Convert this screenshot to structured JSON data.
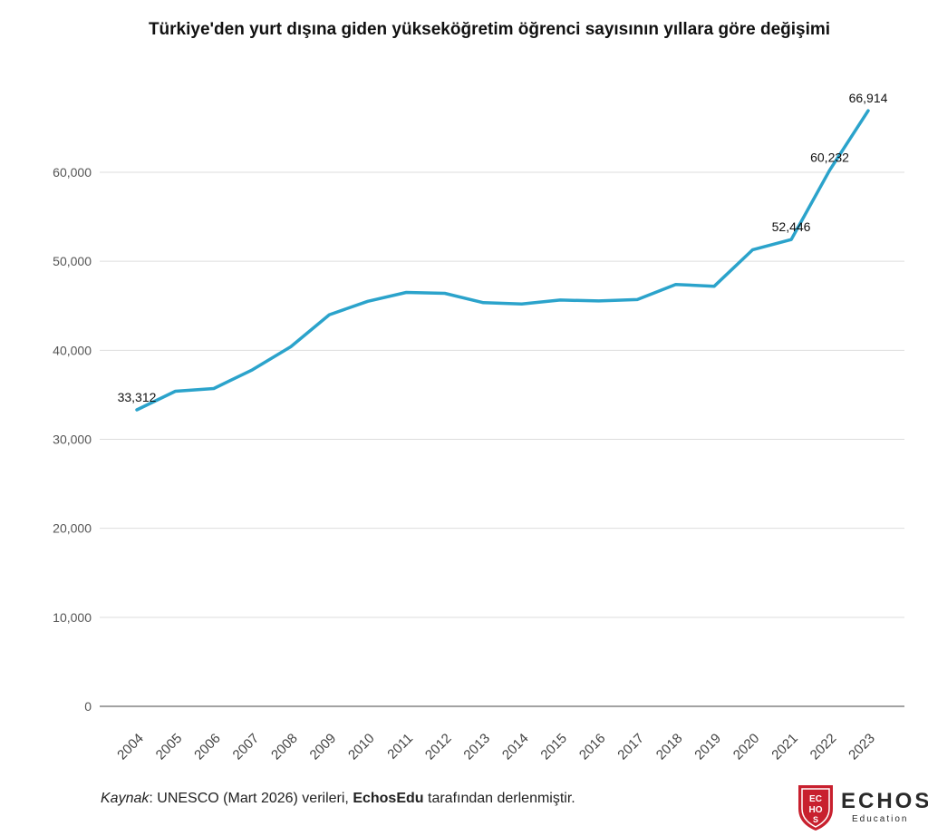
{
  "chart_data": {
    "type": "line",
    "title": "Türkiye'den yurt dışına giden yükseköğretim öğrenci sayısının yıllara göre değişimi",
    "x": [
      "2004",
      "2005",
      "2006",
      "2007",
      "2008",
      "2009",
      "2010",
      "2011",
      "2012",
      "2013",
      "2014",
      "2015",
      "2016",
      "2017",
      "2018",
      "2019",
      "2020",
      "2021",
      "2022",
      "2023"
    ],
    "series": [
      {
        "values": [
          33312,
          35400,
          35700,
          37800,
          40400,
          44000,
          45500,
          46500,
          46400,
          45350,
          45200,
          45650,
          45550,
          45700,
          47400,
          47200,
          51300,
          52446,
          60232,
          66914
        ]
      }
    ],
    "data_labels": [
      {
        "x": "2004",
        "text": "33,312"
      },
      {
        "x": "2021",
        "text": "52,446"
      },
      {
        "x": "2022",
        "text": "60,232"
      },
      {
        "x": "2023",
        "text": "66,914"
      }
    ],
    "y_ticks": [
      0,
      10000,
      20000,
      30000,
      40000,
      50000,
      60000
    ],
    "y_tick_labels": [
      "0",
      "10,000",
      "20,000",
      "30,000",
      "40,000",
      "50,000",
      "60,000"
    ],
    "ylim": [
      0,
      60000
    ],
    "xlabel": "",
    "ylabel": "",
    "grid": true,
    "line_color": "#2ba3cb"
  },
  "source": {
    "label": "Kaynak",
    "text_before": ": UNESCO (Mart 2026) verileri, ",
    "brand": "EchosEdu",
    "text_after": " tarafından derlenmiştir."
  },
  "logo": {
    "monogram": "ECHOS",
    "word": "ECHOS",
    "sub": "Education",
    "color": "#c8202e"
  }
}
